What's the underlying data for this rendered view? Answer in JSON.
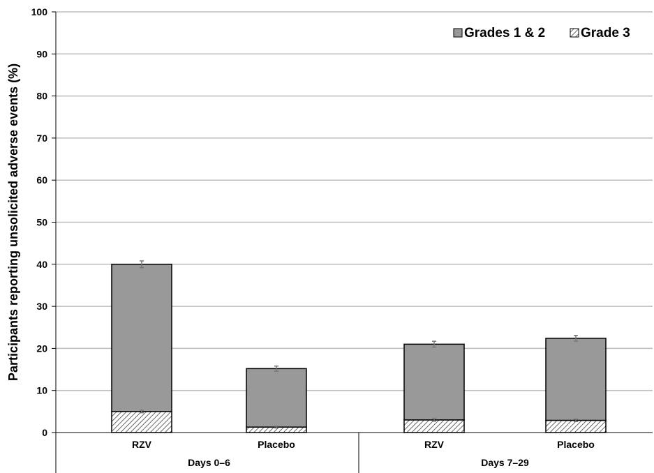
{
  "chart_data": {
    "type": "bar",
    "stacked": true,
    "ylabel": "Participants reporting unsolicited adverse events (%)",
    "ylim": [
      0,
      100
    ],
    "yticks": [
      0,
      10,
      20,
      30,
      40,
      50,
      60,
      70,
      80,
      90,
      100
    ],
    "grid": true,
    "legend_position": "top-right",
    "groups": [
      {
        "label": "Days 0–6",
        "categories": [
          "RZV",
          "Placebo"
        ]
      },
      {
        "label": "Days 7–29",
        "categories": [
          "RZV",
          "Placebo"
        ]
      }
    ],
    "categories": [
      "RZV",
      "Placebo",
      "RZV",
      "Placebo"
    ],
    "series": [
      {
        "name": "Grade 3",
        "values": [
          5.0,
          1.3,
          3.0,
          2.9
        ],
        "error": [
          0.3,
          0.2,
          0.3,
          0.3
        ],
        "color": "#ffffff",
        "pattern": "diagonal-hatch"
      },
      {
        "name": "Grades 1 & 2",
        "values": [
          35.0,
          13.9,
          18.0,
          19.5
        ],
        "error": [
          0.8,
          0.6,
          0.7,
          0.7
        ],
        "color": "#999999",
        "pattern": "solid"
      }
    ],
    "legend_order": [
      "Grades 1 & 2",
      "Grade 3"
    ]
  }
}
